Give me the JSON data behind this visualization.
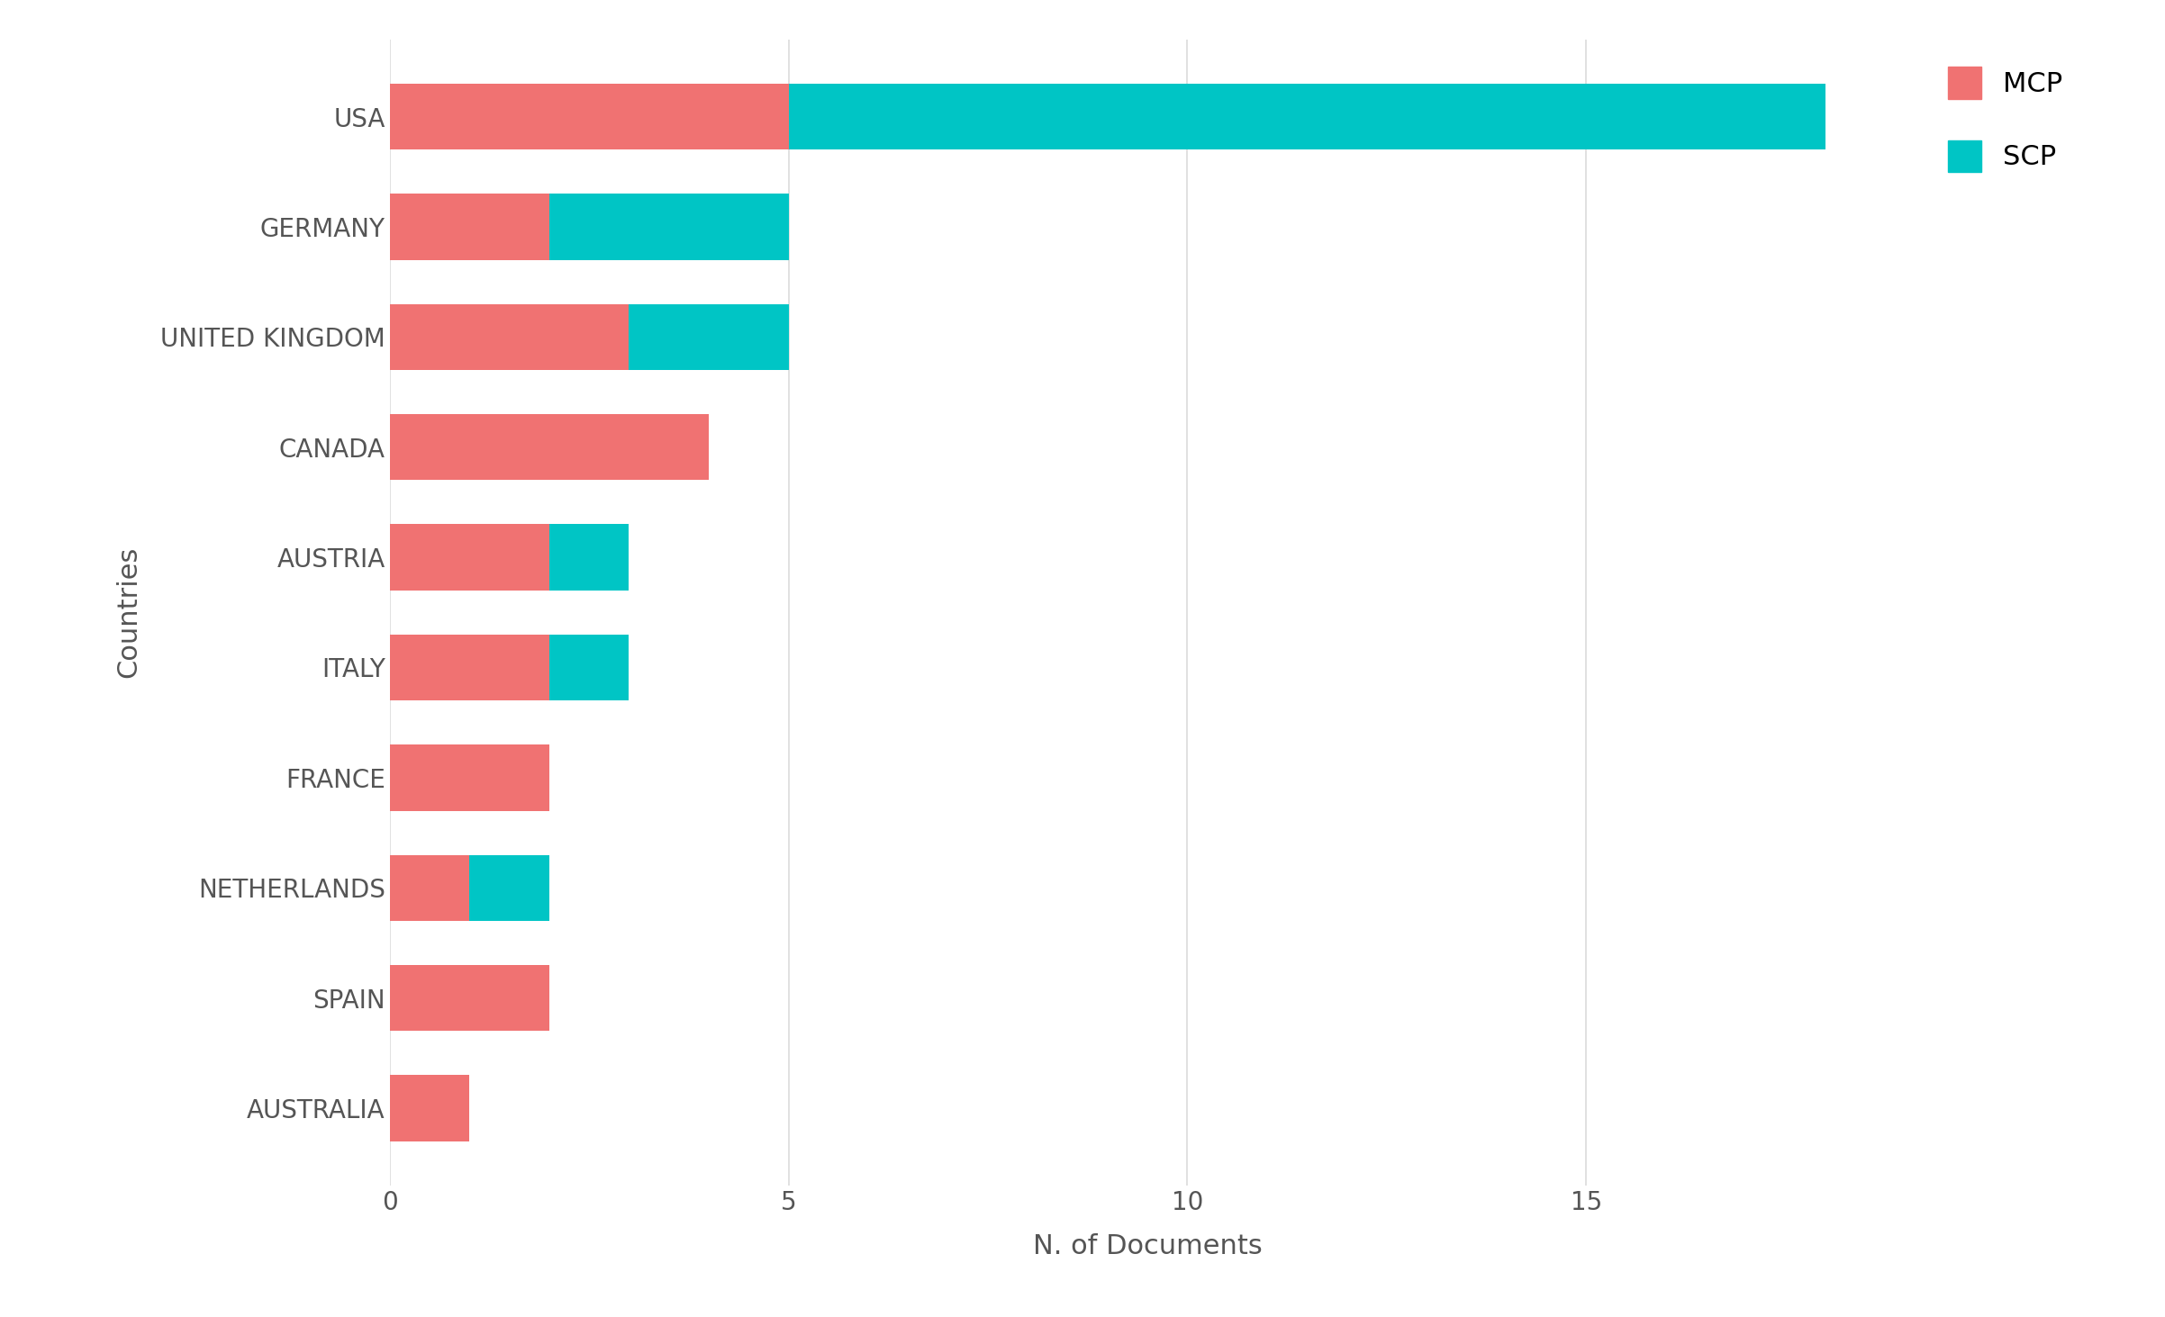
{
  "countries": [
    "USA",
    "GERMANY",
    "UNITED KINGDOM",
    "CANADA",
    "AUSTRIA",
    "ITALY",
    "FRANCE",
    "NETHERLANDS",
    "SPAIN",
    "AUSTRALIA"
  ],
  "mcp_values": [
    5,
    2,
    3,
    4,
    2,
    2,
    2,
    1,
    2,
    1
  ],
  "scp_values": [
    13,
    3,
    2,
    0,
    1,
    1,
    0,
    1,
    0,
    0
  ],
  "mcp_color": "#F07272",
  "scp_color": "#00C5C5",
  "background_color": "#FFFFFF",
  "xlabel": "N. of Documents",
  "ylabel": "Countries",
  "legend_mcp": "MCP",
  "legend_scp": "SCP",
  "xlim": [
    0,
    19
  ],
  "xticks": [
    0,
    5,
    10,
    15
  ],
  "grid_color": "#DCDCDC",
  "bar_height": 0.6,
  "label_fontsize": 22,
  "tick_fontsize": 20,
  "legend_fontsize": 22,
  "ylabel_fontsize": 22
}
